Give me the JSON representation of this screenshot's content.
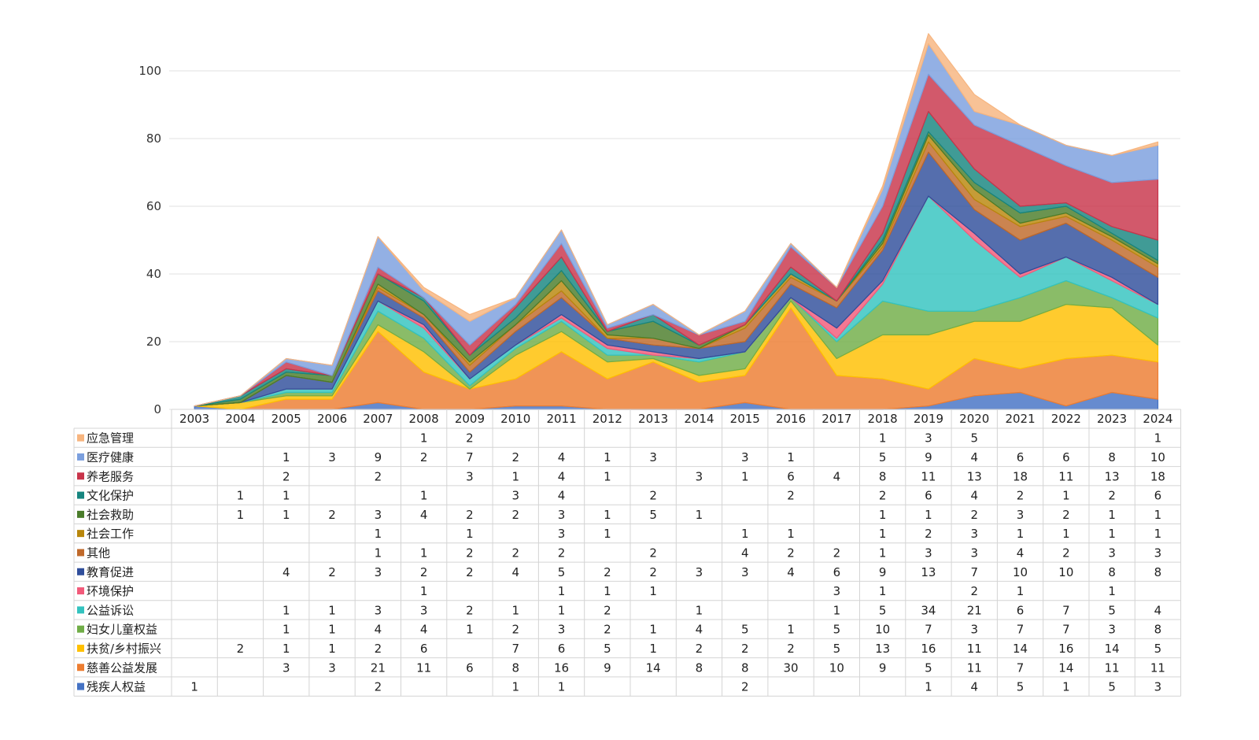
{
  "chart_data": {
    "type": "area",
    "stacked": true,
    "title": "",
    "xlabel": "",
    "ylabel": "",
    "ylim": [
      0,
      110
    ],
    "yticks": [
      0,
      20,
      40,
      60,
      80,
      100
    ],
    "grid": true,
    "legend": "table-below",
    "categories": [
      "2003",
      "2004",
      "2005",
      "2006",
      "2007",
      "2008",
      "2009",
      "2010",
      "2011",
      "2012",
      "2013",
      "2014",
      "2015",
      "2016",
      "2017",
      "2018",
      "2019",
      "2020",
      "2021",
      "2022",
      "2023",
      "2024"
    ],
    "series": [
      {
        "name": "残疾人权益",
        "color": "#4472c4",
        "values": [
          1,
          null,
          null,
          null,
          2,
          null,
          null,
          1,
          1,
          null,
          null,
          null,
          2,
          null,
          null,
          null,
          1,
          4,
          5,
          1,
          5,
          3
        ]
      },
      {
        "name": "慈善公益发展",
        "color": "#ed7d31",
        "values": [
          null,
          null,
          3,
          3,
          21,
          11,
          6,
          8,
          16,
          9,
          14,
          8,
          8,
          30,
          10,
          9,
          5,
          11,
          7,
          14,
          11,
          11
        ]
      },
      {
        "name": "扶贫/乡村振兴",
        "color": "#ffc000",
        "values": [
          null,
          2,
          1,
          1,
          2,
          6,
          null,
          7,
          6,
          5,
          1,
          2,
          2,
          2,
          5,
          13,
          16,
          11,
          14,
          16,
          14,
          5
        ]
      },
      {
        "name": "妇女儿童权益",
        "color": "#70ad47",
        "values": [
          null,
          null,
          1,
          1,
          4,
          4,
          1,
          2,
          3,
          2,
          1,
          4,
          5,
          1,
          5,
          10,
          7,
          3,
          7,
          7,
          3,
          8
        ]
      },
      {
        "name": "公益诉讼",
        "color": "#33c3bf",
        "values": [
          null,
          null,
          1,
          1,
          3,
          3,
          2,
          1,
          1,
          2,
          null,
          1,
          null,
          null,
          1,
          5,
          34,
          21,
          6,
          7,
          5,
          4
        ]
      },
      {
        "name": "环境保护",
        "color": "#f25a7a",
        "values": [
          null,
          null,
          null,
          null,
          null,
          1,
          null,
          null,
          1,
          1,
          1,
          null,
          null,
          null,
          3,
          1,
          null,
          2,
          1,
          null,
          1,
          null
        ]
      },
      {
        "name": "教育促进",
        "color": "#2f4e9b",
        "values": [
          null,
          null,
          4,
          2,
          3,
          2,
          2,
          4,
          5,
          2,
          2,
          3,
          3,
          4,
          6,
          9,
          13,
          7,
          10,
          10,
          8,
          8
        ]
      },
      {
        "name": "其他",
        "color": "#c0692a",
        "values": [
          null,
          null,
          null,
          null,
          1,
          1,
          2,
          2,
          2,
          null,
          2,
          null,
          4,
          2,
          2,
          1,
          3,
          3,
          4,
          2,
          3,
          3
        ]
      },
      {
        "name": "社会工作",
        "color": "#b8860b",
        "values": [
          null,
          null,
          null,
          null,
          1,
          null,
          1,
          null,
          3,
          1,
          null,
          null,
          1,
          1,
          null,
          1,
          2,
          3,
          1,
          1,
          1,
          1
        ]
      },
      {
        "name": "社会救助",
        "color": "#4a7c2a",
        "values": [
          null,
          1,
          1,
          2,
          3,
          4,
          2,
          2,
          3,
          1,
          5,
          1,
          null,
          null,
          null,
          1,
          1,
          2,
          3,
          2,
          1,
          1
        ]
      },
      {
        "name": "文化保护",
        "color": "#16857f",
        "values": [
          null,
          1,
          1,
          null,
          null,
          1,
          null,
          3,
          4,
          null,
          2,
          null,
          null,
          2,
          null,
          2,
          6,
          4,
          2,
          1,
          2,
          6
        ]
      },
      {
        "name": "养老服务",
        "color": "#c8344a",
        "values": [
          null,
          null,
          2,
          null,
          2,
          null,
          3,
          1,
          4,
          1,
          null,
          3,
          1,
          6,
          4,
          8,
          11,
          13,
          18,
          11,
          13,
          18
        ]
      },
      {
        "name": "医疗健康",
        "color": "#7b9fde",
        "values": [
          null,
          null,
          1,
          3,
          9,
          2,
          7,
          2,
          4,
          1,
          3,
          null,
          3,
          1,
          null,
          5,
          9,
          4,
          6,
          6,
          8,
          10
        ]
      },
      {
        "name": "应急管理",
        "color": "#f7b57f",
        "values": [
          null,
          null,
          null,
          null,
          null,
          1,
          2,
          null,
          null,
          null,
          null,
          null,
          null,
          null,
          null,
          1,
          3,
          5,
          null,
          null,
          null,
          1
        ]
      }
    ]
  }
}
